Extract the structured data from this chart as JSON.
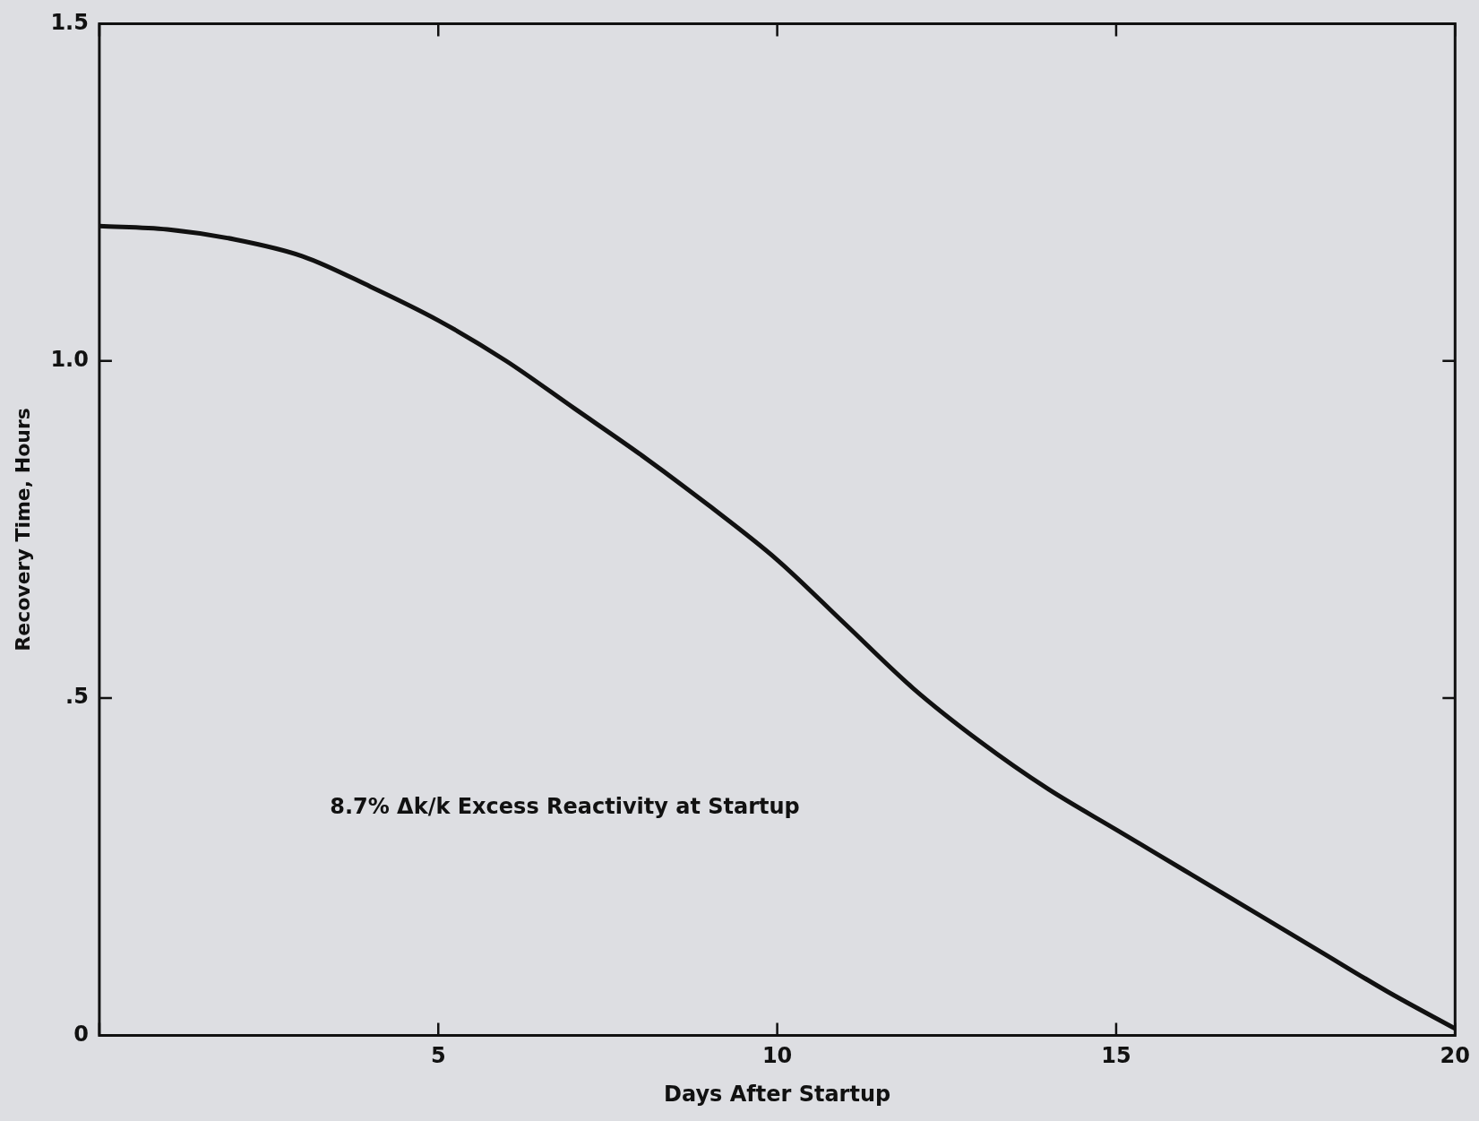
{
  "chart_data": {
    "type": "line",
    "xlabel": "Days After Startup",
    "ylabel": "Recovery Time, Hours",
    "annotations": [
      "8.7% Δk/k Excess Reactivity at Startup"
    ],
    "x": [
      0,
      1,
      2,
      3,
      4,
      5,
      6,
      7,
      8,
      9,
      10,
      11,
      12,
      13,
      14,
      15,
      16,
      17,
      18,
      19,
      20
    ],
    "series": [
      {
        "color": "#111111",
        "values": [
          1.2,
          1.195,
          1.18,
          1.155,
          1.11,
          1.06,
          1.0,
          0.93,
          0.86,
          0.785,
          0.705,
          0.61,
          0.515,
          0.435,
          0.365,
          0.305,
          0.245,
          0.185,
          0.125,
          0.065,
          0.01
        ]
      }
    ],
    "xlim": [
      0,
      20
    ],
    "xticks": [
      {
        "value": 0,
        "label": null
      },
      5,
      10,
      15,
      20
    ],
    "ylim": [
      0,
      1.5
    ],
    "yticks": [
      0,
      {
        "value": 0.5,
        "label": ".5"
      },
      {
        "value": 1,
        "label": "1.0"
      },
      {
        "value": 1.5,
        "label": "1.5"
      }
    ],
    "grid": false,
    "legend": false,
    "marker": "none",
    "line_style": "solid"
  }
}
